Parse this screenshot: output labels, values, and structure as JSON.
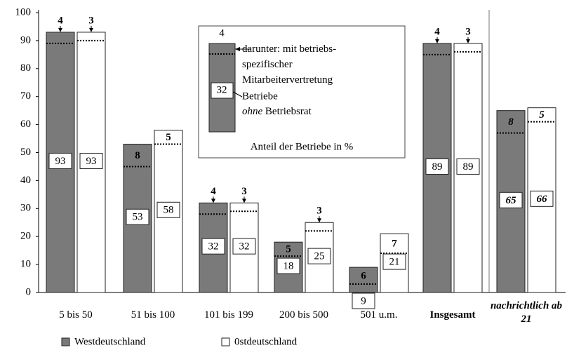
{
  "chart_data": {
    "type": "bar",
    "categories": [
      "5 bis 50",
      "51 bis 100",
      "101 bis 199",
      "200 bis 500",
      "501 u.m.",
      "Insgesamt",
      "nachrichtlich ab 21"
    ],
    "series": [
      {
        "name": "Westdeutschland",
        "color": "#7a7a7a",
        "values": [
          93,
          53,
          32,
          18,
          9,
          89,
          65
        ],
        "darunter": [
          4,
          8,
          4,
          5,
          6,
          4,
          8
        ]
      },
      {
        "name": "0stdeutschland",
        "color": "#ffffff",
        "values": [
          93,
          58,
          32,
          25,
          21,
          89,
          66
        ],
        "darunter": [
          3,
          5,
          3,
          3,
          7,
          3,
          5
        ]
      }
    ],
    "ylim": [
      0,
      100
    ],
    "yticks": [
      0,
      10,
      20,
      30,
      40,
      50,
      60,
      70,
      80,
      90,
      100
    ],
    "legend_position": "bottom",
    "inset": {
      "top_value": "4",
      "lines": [
        "darunter: mit betriebs-",
        "spezifischer",
        "Mitarbeitervertretung"
      ],
      "box_value": "32",
      "betriebe": "Betriebe",
      "ohne": "ohne",
      "betriebsrat": "Betriebsrat",
      "caption": "Anteil der Betriebe in %"
    }
  }
}
